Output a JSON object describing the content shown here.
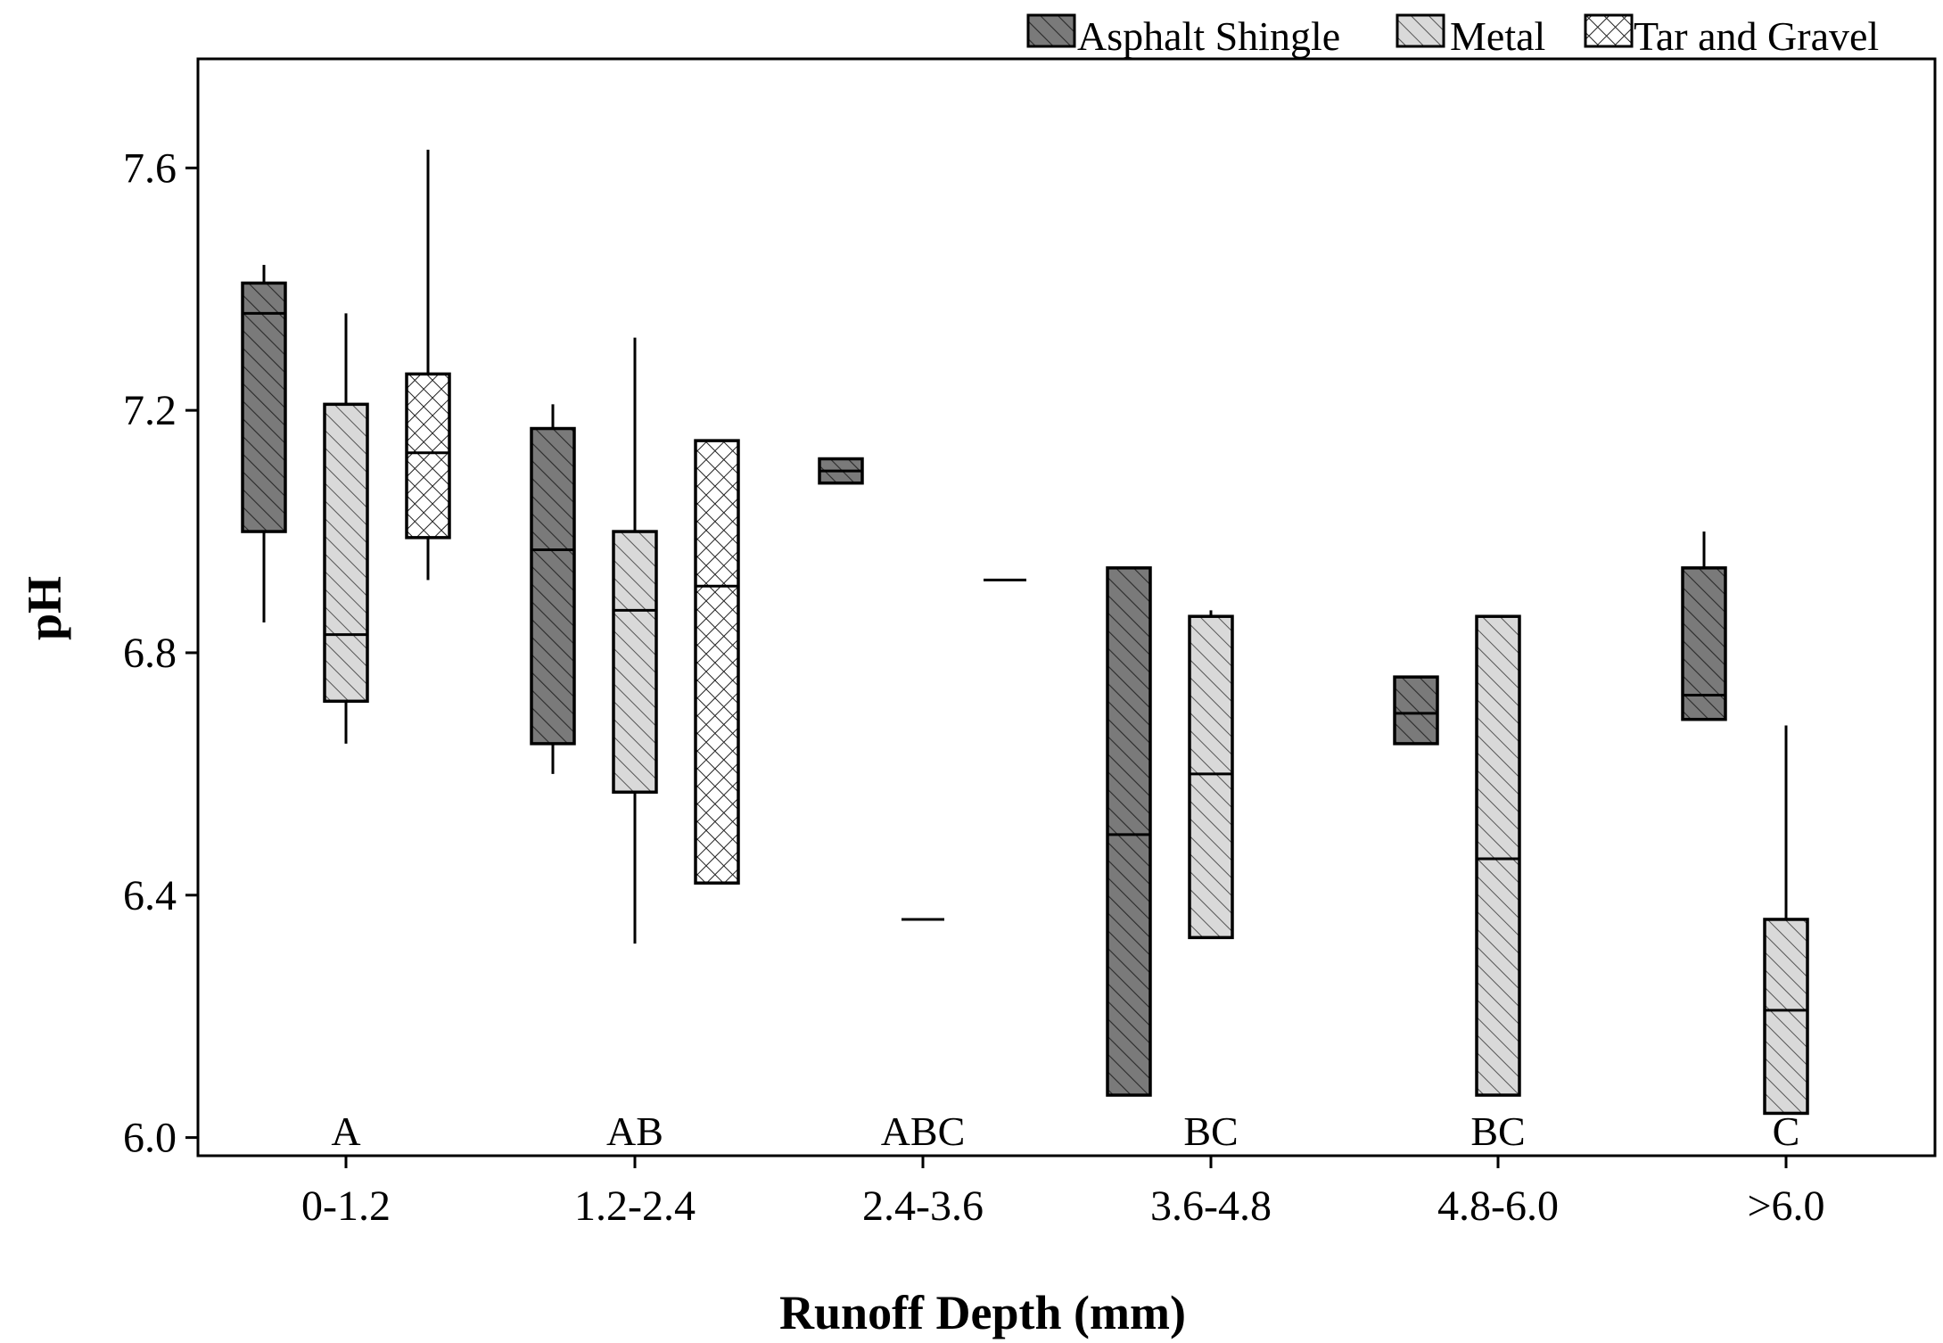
{
  "chart_data": {
    "type": "boxplot",
    "xlabel": "Runoff Depth (mm)",
    "ylabel": "pH",
    "ylim": [
      5.97,
      7.78
    ],
    "yticks": [
      "6.0",
      "6.4",
      "6.8",
      "7.2",
      "7.6"
    ],
    "grid": false,
    "legend_position": "top-right",
    "categories": [
      "0-1.2",
      "1.2-2.4",
      "2.4-3.6",
      "3.6-4.8",
      "4.8-6.0",
      ">6.0"
    ],
    "group_letters": [
      "A",
      "AB",
      "ABC",
      "BC",
      "BC",
      "C"
    ],
    "series": [
      {
        "name": "Asphalt Shingle",
        "color": "#7a7a7a",
        "pattern": "diagonal",
        "boxes": [
          {
            "category": "0-1.2",
            "whisker_low": 6.85,
            "q1": 7.0,
            "median": 7.36,
            "q3": 7.41,
            "whisker_high": 7.44
          },
          {
            "category": "1.2-2.4",
            "whisker_low": 6.6,
            "q1": 6.65,
            "median": 6.97,
            "q3": 7.17,
            "whisker_high": 7.21
          },
          {
            "category": "2.4-3.6",
            "whisker_low": 7.08,
            "q1": 7.08,
            "median": 7.1,
            "q3": 7.12,
            "whisker_high": 7.12
          },
          {
            "category": "3.6-4.8",
            "whisker_low": 6.07,
            "q1": 6.07,
            "median": 6.5,
            "q3": 6.94,
            "whisker_high": 6.94
          },
          {
            "category": "4.8-6.0",
            "whisker_low": 6.65,
            "q1": 6.65,
            "median": 6.7,
            "q3": 6.76,
            "whisker_high": 6.76
          },
          {
            "category": ">6.0",
            "whisker_low": 6.69,
            "q1": 6.69,
            "median": 6.73,
            "q3": 6.94,
            "whisker_high": 7.0
          }
        ]
      },
      {
        "name": "Metal",
        "color": "#d9d9d9",
        "pattern": "diagonal",
        "boxes": [
          {
            "category": "0-1.2",
            "whisker_low": 6.65,
            "q1": 6.72,
            "median": 6.83,
            "q3": 7.21,
            "whisker_high": 7.36
          },
          {
            "category": "1.2-2.4",
            "whisker_low": 6.32,
            "q1": 6.57,
            "median": 6.87,
            "q3": 7.0,
            "whisker_high": 7.32
          },
          {
            "category": "2.4-3.6",
            "whisker_low": 6.36,
            "q1": 6.36,
            "median": 6.36,
            "q3": 6.36,
            "whisker_high": 6.36
          },
          {
            "category": "3.6-4.8",
            "whisker_low": 6.33,
            "q1": 6.33,
            "median": 6.6,
            "q3": 6.86,
            "whisker_high": 6.87
          },
          {
            "category": "4.8-6.0",
            "whisker_low": 6.07,
            "q1": 6.07,
            "median": 6.46,
            "q3": 6.86,
            "whisker_high": 6.86
          },
          {
            "category": ">6.0",
            "whisker_low": 6.04,
            "q1": 6.04,
            "median": 6.21,
            "q3": 6.36,
            "whisker_high": 6.68
          }
        ]
      },
      {
        "name": "Tar and Gravel",
        "color": "#ffffff",
        "pattern": "crosshatch",
        "boxes": [
          {
            "category": "0-1.2",
            "whisker_low": 6.92,
            "q1": 6.99,
            "median": 7.13,
            "q3": 7.26,
            "whisker_high": 7.63
          },
          {
            "category": "1.2-2.4",
            "whisker_low": 6.42,
            "q1": 6.42,
            "median": 6.91,
            "q3": 7.15,
            "whisker_high": 7.15
          },
          {
            "category": "2.4-3.6",
            "whisker_low": 6.92,
            "q1": 6.92,
            "median": 6.92,
            "q3": 6.92,
            "whisker_high": 6.92
          }
        ]
      }
    ]
  }
}
